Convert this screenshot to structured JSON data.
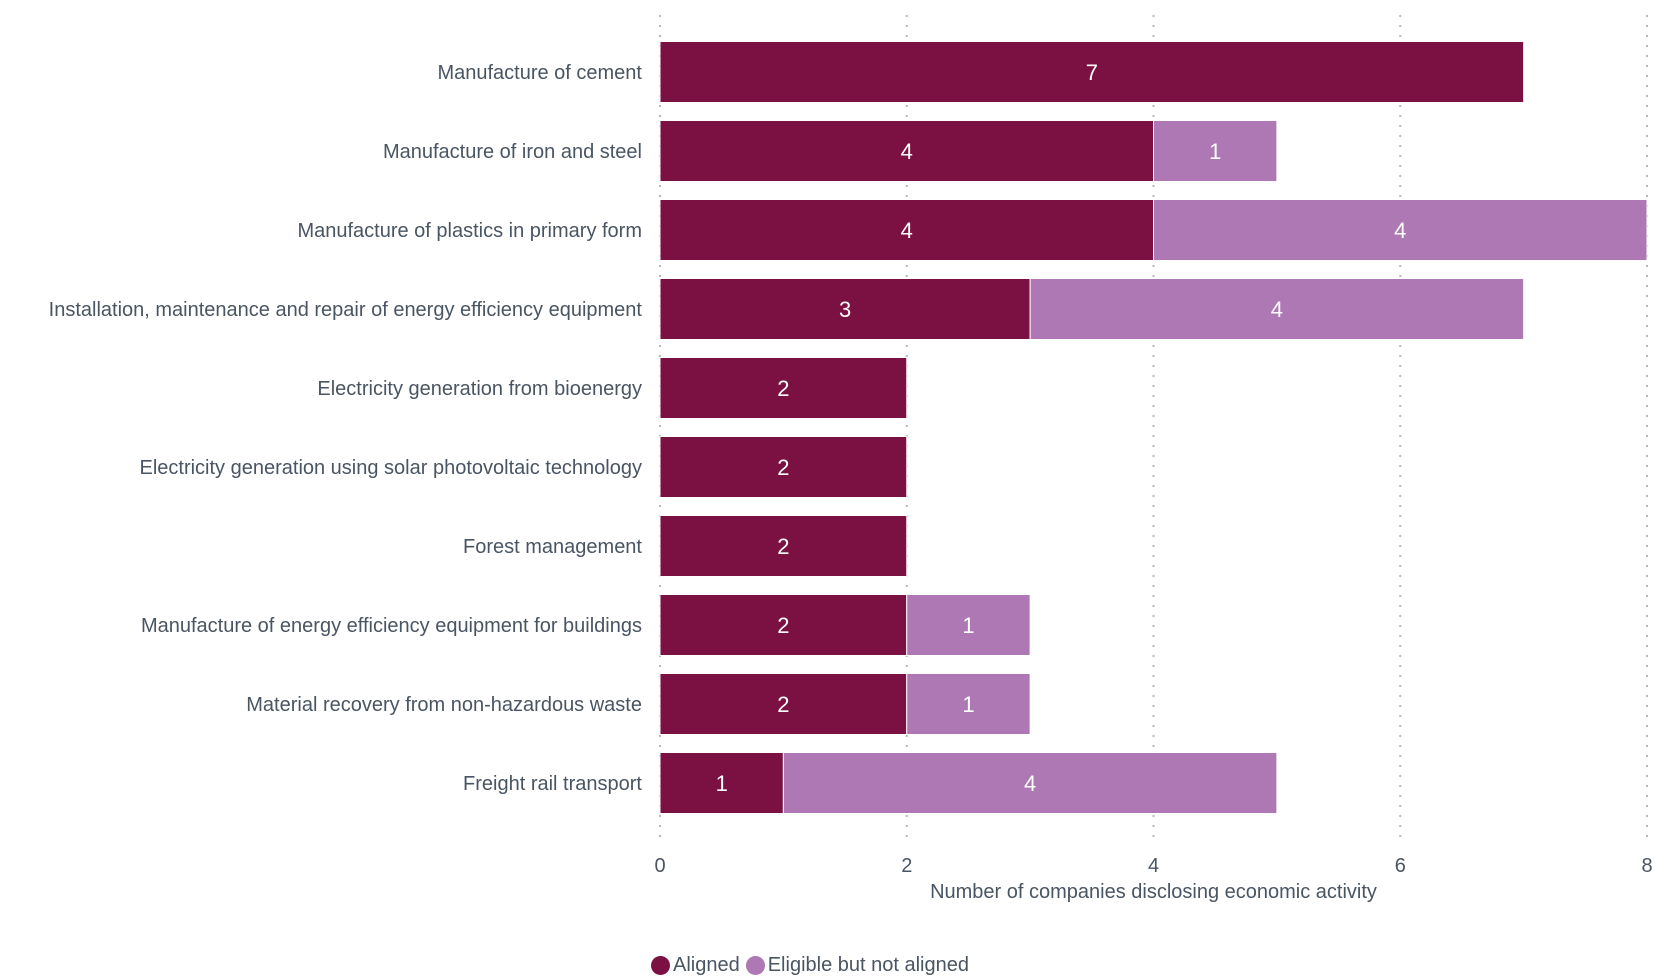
{
  "chart_data": {
    "type": "bar",
    "orientation": "horizontal",
    "stacked": true,
    "categories": [
      "Manufacture of cement",
      "Manufacture of iron and steel",
      "Manufacture of plastics in primary form",
      "Installation, maintenance and repair of energy efficiency equipment",
      "Electricity generation from bioenergy",
      "Electricity generation using solar photovoltaic technology",
      "Forest management",
      "Manufacture of energy efficiency equipment for buildings",
      "Material recovery from non-hazardous waste",
      "Freight rail transport"
    ],
    "series": [
      {
        "name": "Aligned",
        "color": "#7b1042",
        "values": [
          7,
          4,
          4,
          3,
          2,
          2,
          2,
          2,
          2,
          1
        ]
      },
      {
        "name": "Eligible but not aligned",
        "color": "#ad78b3",
        "values": [
          0,
          1,
          4,
          4,
          0,
          0,
          0,
          1,
          1,
          4
        ]
      }
    ],
    "xlabel": "Number of companies disclosing economic activity",
    "ylabel": "",
    "xlim": [
      0,
      8
    ],
    "xticks": [
      "0",
      "2",
      "4",
      "6",
      "8"
    ],
    "grid": true,
    "legend_position": "bottom"
  }
}
